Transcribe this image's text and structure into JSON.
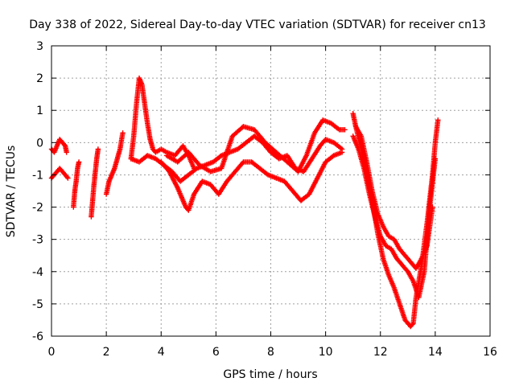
{
  "chart_data": {
    "type": "scatter",
    "title": "Day 338 of 2022, Sidereal Day-to-day VTEC variation (SDTVAR) for receiver cn13",
    "xlabel": "GPS time / hours",
    "ylabel": "SDTVAR / TECUs",
    "xlim": [
      0,
      16
    ],
    "ylim": [
      -6,
      3
    ],
    "xticks": [
      "0",
      "2",
      "4",
      "6",
      "8",
      "10",
      "12",
      "14",
      "16"
    ],
    "yticks": [
      "-6",
      "-5",
      "-4",
      "-3",
      "-2",
      "-1",
      "0",
      "1",
      "2",
      "3"
    ],
    "grid": true,
    "legend": "none",
    "marker": "plus",
    "color": "#ff0000",
    "series": [
      {
        "x": [
          0.0,
          0.1,
          0.2,
          0.3,
          0.4,
          0.5,
          0.55
        ],
        "y": [
          -0.2,
          -0.3,
          -0.1,
          0.1,
          0.0,
          -0.1,
          -0.3
        ]
      },
      {
        "x": [
          0.0,
          0.1,
          0.2,
          0.3,
          0.4,
          0.5,
          0.6
        ],
        "y": [
          -1.1,
          -1.0,
          -0.9,
          -0.8,
          -0.9,
          -1.0,
          -1.1
        ]
      },
      {
        "x": [
          0.8,
          0.85,
          0.9,
          0.95,
          1.0
        ],
        "y": [
          -2.0,
          -1.5,
          -1.2,
          -0.8,
          -0.6
        ]
      },
      {
        "x": [
          1.45,
          1.5,
          1.55,
          1.6,
          1.65,
          1.7
        ],
        "y": [
          -2.3,
          -1.8,
          -1.3,
          -0.9,
          -0.5,
          -0.2
        ]
      },
      {
        "x": [
          2.0,
          2.1,
          2.2,
          2.3,
          2.4,
          2.5,
          2.6
        ],
        "y": [
          -1.6,
          -1.2,
          -1.0,
          -0.8,
          -0.5,
          -0.2,
          0.3
        ]
      },
      {
        "x": [
          2.9,
          3.0,
          3.1,
          3.2,
          3.3,
          3.4,
          3.5,
          3.6,
          3.7,
          3.8,
          4.0,
          4.2,
          4.5,
          4.8,
          5.0,
          5.2
        ],
        "y": [
          -0.5,
          0.2,
          1.2,
          2.0,
          1.8,
          1.2,
          0.6,
          0.1,
          -0.2,
          -0.3,
          -0.2,
          -0.3,
          -0.4,
          -0.1,
          -0.4,
          -0.8
        ]
      },
      {
        "x": [
          2.9,
          3.2,
          3.5,
          3.8,
          4.1,
          4.4,
          4.7,
          5.0,
          5.3,
          5.6,
          5.9,
          6.2,
          6.5,
          6.8,
          7.1,
          7.4,
          7.7,
          8.0,
          8.3,
          8.6,
          8.9,
          9.2,
          9.5,
          9.8,
          10.0,
          10.3,
          10.6
        ],
        "y": [
          -0.5,
          -0.6,
          -0.4,
          -0.5,
          -0.7,
          -0.9,
          -1.2,
          -1.0,
          -0.8,
          -0.7,
          -0.6,
          -0.4,
          -0.3,
          -0.2,
          0.0,
          0.2,
          0.0,
          -0.3,
          -0.5,
          -0.4,
          -0.8,
          -0.9,
          -0.5,
          -0.1,
          0.1,
          0.0,
          -0.2
        ]
      },
      {
        "x": [
          4.0,
          4.3,
          4.6,
          4.9,
          5.0,
          5.2,
          5.5,
          5.8,
          6.1,
          6.4,
          6.7,
          7.0,
          7.3,
          7.6,
          7.9,
          8.2,
          8.5,
          8.8,
          9.1,
          9.4,
          9.7,
          10.0,
          10.3,
          10.6
        ],
        "y": [
          -0.6,
          -0.9,
          -1.4,
          -2.0,
          -2.1,
          -1.6,
          -1.2,
          -1.3,
          -1.6,
          -1.2,
          -0.9,
          -0.6,
          -0.6,
          -0.8,
          -1.0,
          -1.1,
          -1.2,
          -1.5,
          -1.8,
          -1.6,
          -1.1,
          -0.6,
          -0.4,
          -0.3
        ]
      },
      {
        "x": [
          4.2,
          4.6,
          5.0,
          5.4,
          5.8,
          6.2,
          6.6,
          7.0,
          7.4,
          7.8,
          8.2,
          8.6,
          9.0,
          9.3,
          9.6,
          9.9,
          10.2,
          10.5,
          10.7
        ],
        "y": [
          -0.4,
          -0.6,
          -0.3,
          -0.7,
          -0.9,
          -0.8,
          0.2,
          0.5,
          0.4,
          0.0,
          -0.3,
          -0.6,
          -0.9,
          -0.4,
          0.3,
          0.7,
          0.6,
          0.4,
          0.4
        ]
      },
      {
        "x": [
          11.0,
          11.1,
          11.3,
          11.5,
          11.7,
          11.9,
          12.1,
          12.3,
          12.5,
          12.7,
          12.9,
          13.1,
          13.2,
          13.3,
          13.5,
          13.7,
          13.9,
          14.0,
          14.1
        ],
        "y": [
          0.9,
          0.5,
          -0.2,
          -1.0,
          -1.8,
          -2.8,
          -3.6,
          -4.1,
          -4.5,
          -5.0,
          -5.5,
          -5.7,
          -5.6,
          -4.8,
          -3.8,
          -2.5,
          -1.0,
          0.0,
          0.7
        ]
      },
      {
        "x": [
          11.0,
          11.2,
          11.4,
          11.6,
          11.8,
          12.0,
          12.2,
          12.4,
          12.6,
          12.8,
          13.0,
          13.2,
          13.4,
          13.6,
          13.8,
          14.0
        ],
        "y": [
          0.2,
          -0.2,
          -0.8,
          -1.6,
          -2.3,
          -2.9,
          -3.2,
          -3.3,
          -3.6,
          -3.8,
          -4.0,
          -4.3,
          -4.8,
          -4.0,
          -2.0,
          -0.5
        ]
      },
      {
        "x": [
          11.1,
          11.3,
          11.5,
          11.7,
          11.9,
          12.1,
          12.3,
          12.5,
          12.7,
          12.9,
          13.1,
          13.3,
          13.5,
          13.7,
          13.9
        ],
        "y": [
          0.5,
          0.2,
          -0.6,
          -1.5,
          -2.2,
          -2.6,
          -2.9,
          -3.0,
          -3.3,
          -3.5,
          -3.7,
          -3.9,
          -3.6,
          -3.2,
          -2.0
        ]
      }
    ]
  }
}
